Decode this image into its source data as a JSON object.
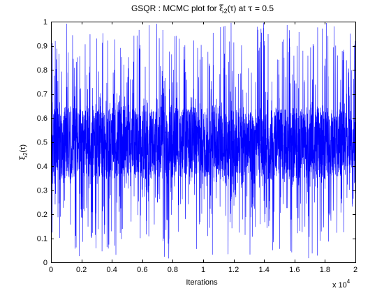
{
  "chart_data": {
    "type": "line",
    "title_parts": {
      "pre": "GSQR : MCMC plot for ",
      "xi": "ξ",
      "sub": "2",
      "mid": "(τ) at ",
      "tau": "τ",
      "post": " = 0.5"
    },
    "xlabel": "Iterations",
    "ylabel_parts": {
      "xi": "ξ",
      "sub": "2",
      "post": "(τ)"
    },
    "x_multiplier": {
      "text": "x 10",
      "exp": "4"
    },
    "xlim": [
      0,
      20000
    ],
    "ylim": [
      0,
      1
    ],
    "x_ticks": [
      0,
      2000,
      4000,
      6000,
      8000,
      10000,
      12000,
      14000,
      16000,
      18000,
      20000
    ],
    "x_tick_labels": [
      "0",
      "0.2",
      "0.4",
      "0.6",
      "0.8",
      "1",
      "1.2",
      "1.4",
      "1.6",
      "1.8",
      "2"
    ],
    "y_ticks": [
      0,
      0.1,
      0.2,
      0.3,
      0.4,
      0.5,
      0.6,
      0.7,
      0.8,
      0.9,
      1
    ],
    "y_tick_labels": [
      "0",
      "0.1",
      "0.2",
      "0.3",
      "0.4",
      "0.5",
      "0.6",
      "0.7",
      "0.8",
      "0.9",
      "1"
    ],
    "grid": false,
    "series": [
      {
        "color": "#0000ff",
        "trace_summary": "20000 MCMC draws; dense core band roughly 0.35–0.65 centred near 0.5, frequent excursions toward 0 and 1",
        "envelope": {
          "x": [
            0,
            1000,
            2000,
            3000,
            4000,
            5000,
            6000,
            7000,
            8000,
            9000,
            10000,
            11000,
            12000,
            13000,
            14000,
            15000,
            16000,
            17000,
            18000,
            19000,
            20000
          ],
          "max": [
            0.92,
            1.0,
            0.97,
            1.0,
            0.93,
            1.0,
            1.0,
            1.0,
            1.0,
            0.88,
            1.0,
            1.0,
            1.0,
            0.97,
            1.0,
            1.0,
            1.0,
            0.96,
            1.0,
            1.0,
            0.98
          ],
          "min": [
            0.06,
            0.02,
            0.0,
            0.06,
            0.01,
            0.0,
            0.0,
            0.03,
            0.0,
            0.04,
            0.04,
            0.0,
            0.04,
            0.02,
            0.08,
            0.0,
            0.05,
            0.0,
            0.05,
            0.03,
            0.25
          ],
          "core_high": [
            0.64,
            0.65,
            0.63,
            0.64,
            0.64,
            0.65,
            0.63,
            0.64,
            0.65,
            0.64,
            0.64,
            0.65,
            0.64,
            0.63,
            0.65,
            0.64,
            0.64,
            0.65,
            0.64,
            0.64,
            0.6
          ],
          "core_low": [
            0.33,
            0.35,
            0.36,
            0.35,
            0.34,
            0.36,
            0.35,
            0.35,
            0.36,
            0.35,
            0.35,
            0.34,
            0.35,
            0.36,
            0.35,
            0.34,
            0.35,
            0.34,
            0.35,
            0.36,
            0.4
          ]
        }
      }
    ]
  }
}
